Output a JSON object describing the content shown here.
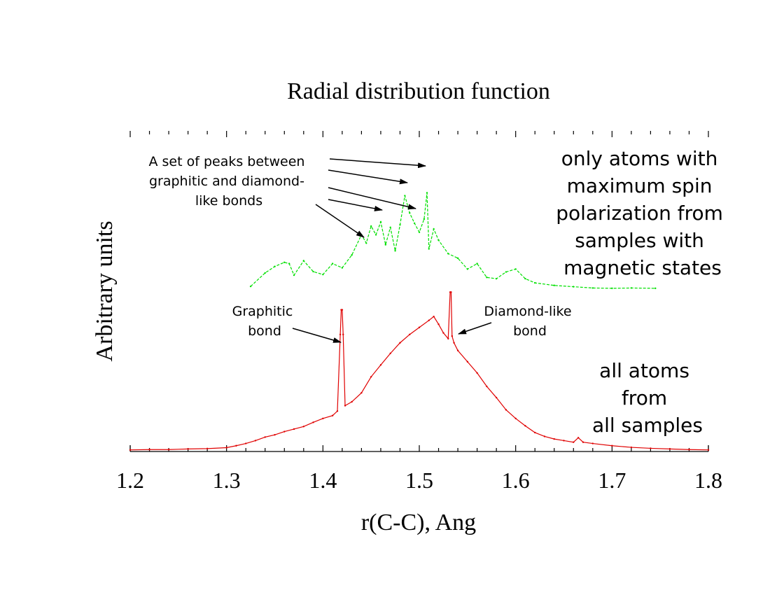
{
  "chart_data": {
    "type": "line",
    "title": "Radial distribution function",
    "xlabel": "r(C-C), Ang",
    "ylabel": "Arbitrary units",
    "xlim": [
      1.2,
      1.8
    ],
    "ylim": [
      0,
      100
    ],
    "yticks_labeled": false,
    "grid": false,
    "x_ticks": [
      "1.2",
      "1.3",
      "1.4",
      "1.5",
      "1.6",
      "1.7",
      "1.8"
    ],
    "series": [
      {
        "name": "all atoms from all samples",
        "color": "#e00000",
        "style": "solid",
        "x": [
          1.2,
          1.22,
          1.24,
          1.26,
          1.28,
          1.3,
          1.31,
          1.32,
          1.33,
          1.34,
          1.35,
          1.36,
          1.37,
          1.38,
          1.39,
          1.4,
          1.41,
          1.415,
          1.418,
          1.419,
          1.42,
          1.421,
          1.423,
          1.43,
          1.44,
          1.45,
          1.46,
          1.47,
          1.48,
          1.49,
          1.5,
          1.51,
          1.515,
          1.52,
          1.525,
          1.53,
          1.532,
          1.533,
          1.534,
          1.536,
          1.54,
          1.55,
          1.56,
          1.57,
          1.58,
          1.59,
          1.6,
          1.61,
          1.62,
          1.63,
          1.64,
          1.65,
          1.66,
          1.665,
          1.67,
          1.68,
          1.7,
          1.72,
          1.74,
          1.76,
          1.78,
          1.8
        ],
        "y": [
          0.5,
          0.6,
          0.6,
          0.8,
          0.9,
          1.2,
          1.8,
          2.5,
          3.4,
          4.5,
          5.2,
          6.2,
          7.0,
          7.8,
          9.1,
          10.3,
          11.2,
          12.6,
          36.5,
          44.2,
          44.2,
          36.5,
          14.3,
          15.5,
          18.3,
          23.3,
          27.0,
          30.6,
          33.9,
          36.5,
          38.7,
          40.9,
          42.1,
          39.7,
          37.0,
          35.2,
          49.7,
          49.7,
          36.0,
          33.9,
          31.5,
          28.0,
          24.5,
          20.3,
          16.8,
          13.0,
          10.3,
          8.0,
          5.9,
          4.7,
          3.9,
          3.4,
          2.9,
          4.3,
          2.9,
          2.5,
          1.8,
          1.3,
          1.0,
          0.8,
          0.6,
          0.5
        ]
      },
      {
        "name": "only atoms with maximum spin polarization from samples with magnetic states",
        "color": "#00e000",
        "style": "dashed",
        "x": [
          1.325,
          1.34,
          1.35,
          1.36,
          1.365,
          1.37,
          1.38,
          1.39,
          1.4,
          1.41,
          1.42,
          1.43,
          1.44,
          1.445,
          1.45,
          1.455,
          1.46,
          1.465,
          1.47,
          1.475,
          1.48,
          1.485,
          1.49,
          1.495,
          1.5,
          1.505,
          1.508,
          1.51,
          1.515,
          1.52,
          1.53,
          1.54,
          1.55,
          1.56,
          1.57,
          1.58,
          1.59,
          1.6,
          1.61,
          1.62,
          1.64,
          1.66,
          1.68,
          1.7,
          1.72,
          1.745
        ],
        "y": [
          51.5,
          55.7,
          57.7,
          59.0,
          58.6,
          55.0,
          59.5,
          56.1,
          55.2,
          58.6,
          57.3,
          61.3,
          67.6,
          65.0,
          70.3,
          67.6,
          71.6,
          64.5,
          69.9,
          62.6,
          70.7,
          79.8,
          74.4,
          71.2,
          68.4,
          72.5,
          80.7,
          63.2,
          69.4,
          65.9,
          61.7,
          60.3,
          56.9,
          58.6,
          54.3,
          53.9,
          56.0,
          56.9,
          53.9,
          52.6,
          51.8,
          51.4,
          51.0,
          50.9,
          51.0,
          50.9
        ]
      }
    ],
    "annotations": {
      "peaks_group": {
        "lines": [
          "A set of peaks between",
          "graphitic and diamond-",
          "like bonds"
        ]
      },
      "graphitic": {
        "lines": [
          "Graphitic",
          "bond"
        ]
      },
      "diamond": {
        "lines": [
          "Diamond-like",
          "bond"
        ]
      },
      "legend_green": {
        "lines": [
          "only atoms with",
          "maximum spin",
          "polarization from",
          "samples with",
          "magnetic states"
        ]
      },
      "legend_red": {
        "lines": [
          "all atoms",
          "from",
          "all samples"
        ]
      }
    },
    "colors": {
      "red": "#e00000",
      "green": "#00e000",
      "axis": "#000000"
    }
  }
}
